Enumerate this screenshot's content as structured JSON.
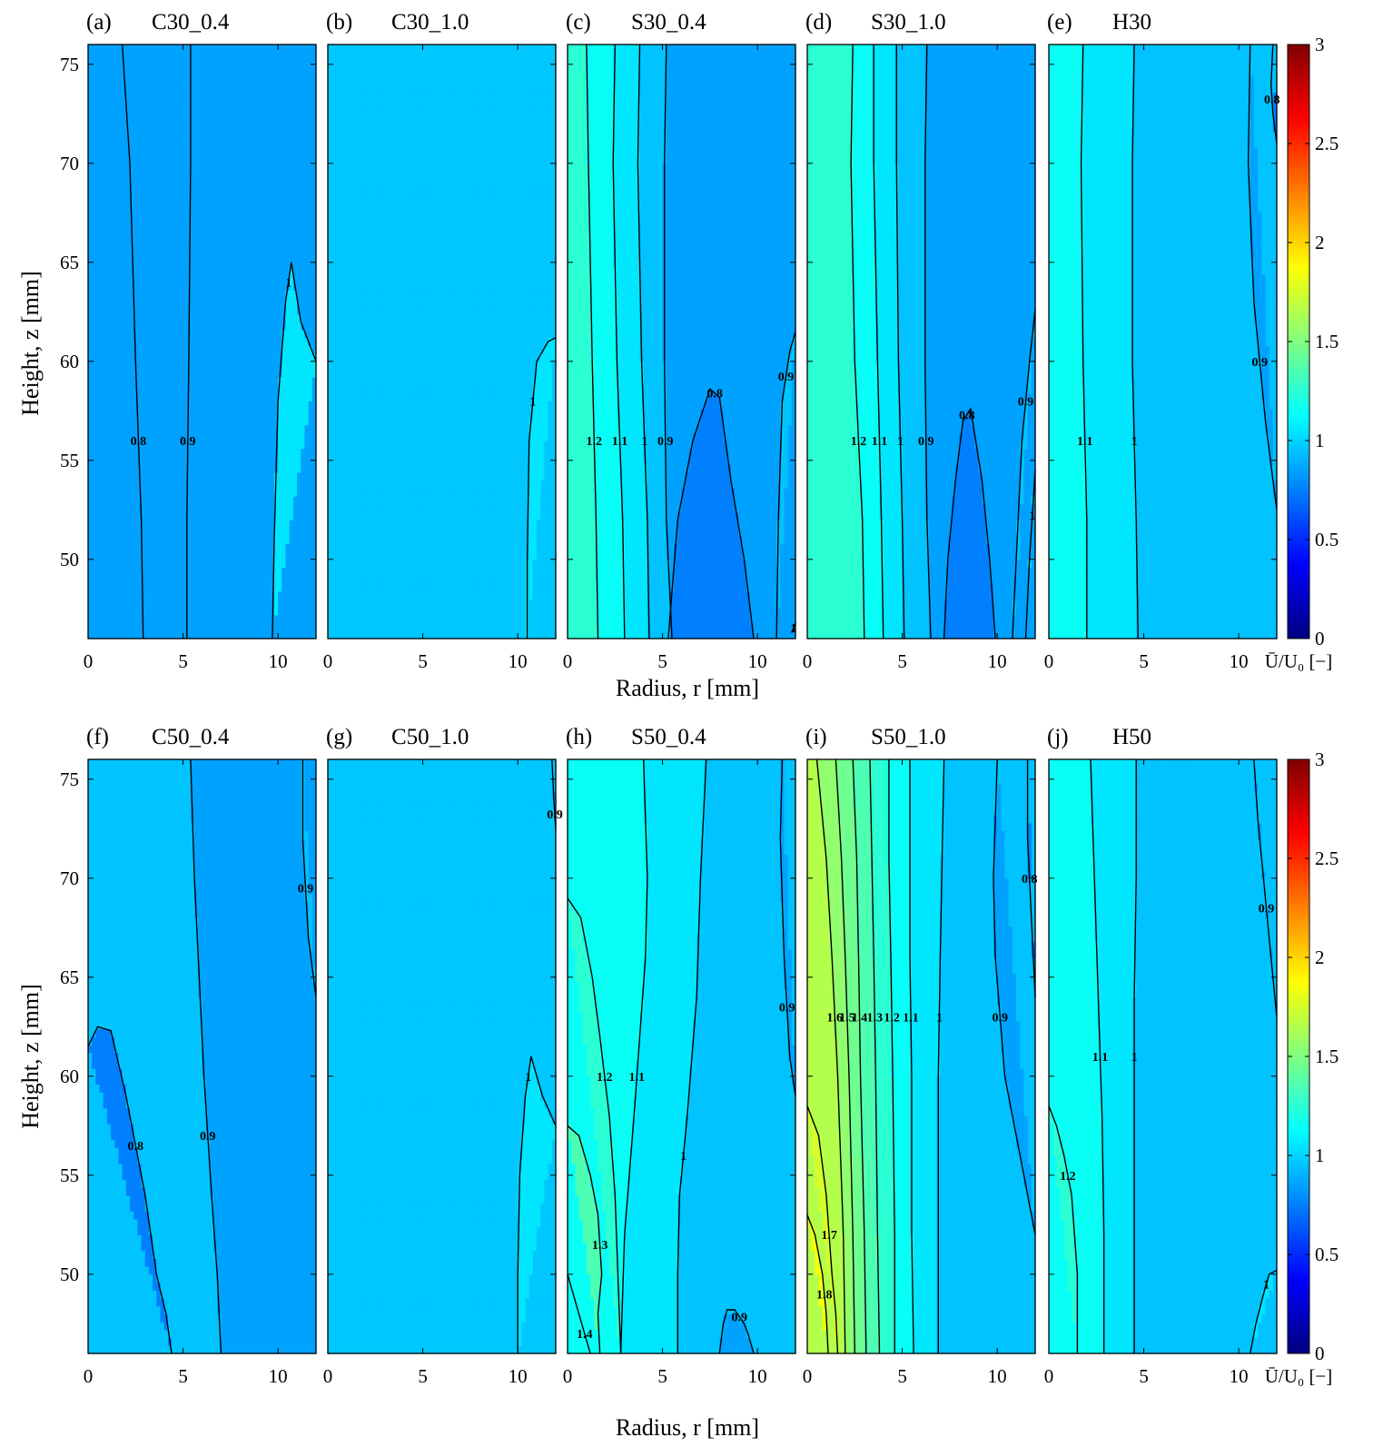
{
  "figure": {
    "xlabel": "Radius, r [mm]",
    "ylabel": "Height, z [mm]",
    "colorbar_label": "Ū/U₀ [−]"
  },
  "chart_data": {
    "type": "heatmap",
    "colormap": "jet",
    "clim": [
      0,
      3
    ],
    "colorbar_ticks": [
      "0",
      "0.5",
      "1",
      "1.5",
      "2",
      "2.5",
      "3"
    ],
    "x_range_mm": [
      0,
      12
    ],
    "y_range_mm": [
      46,
      76
    ],
    "x_ticks": [
      0,
      5,
      10
    ],
    "y_ticks": [
      50,
      55,
      60,
      65,
      70,
      75
    ],
    "panels": [
      {
        "tag": "(a)",
        "title": "C30_0.4",
        "contours": [
          {
            "level": 0.8,
            "x": [
              1.8,
              2.2,
              2.5,
              2.8,
              2.9
            ],
            "y": [
              76,
              70,
              60,
              52,
              46
            ]
          },
          {
            "level": 0.9,
            "x": [
              5.4,
              5.4,
              5.3,
              5.2,
              5.2
            ],
            "y": [
              76,
              70,
              60,
              52,
              46
            ]
          },
          {
            "level": 1.0,
            "x": [
              9.7,
              9.8,
              10.0,
              10.4,
              10.7,
              11.2,
              12
            ],
            "y": [
              46,
              51,
              58,
              63,
              65,
              62,
              60
            ]
          }
        ]
      },
      {
        "tag": "(b)",
        "title": "C30_1.0",
        "contours": [
          {
            "level": 1.0,
            "x": [
              10.5,
              10.5,
              10.6,
              11.0,
              11.6,
              12
            ],
            "y": [
              46,
              50,
              56,
              60,
              61,
              61.2
            ]
          }
        ]
      },
      {
        "tag": "(c)",
        "title": "S30_0.4",
        "contours": [
          {
            "level": 1.2,
            "x": [
              1.0,
              1.1,
              1.3,
              1.5,
              1.6
            ],
            "y": [
              76,
              70,
              60,
              52,
              46
            ]
          },
          {
            "level": 1.1,
            "x": [
              2.5,
              2.4,
              2.6,
              2.9,
              3.0
            ],
            "y": [
              76,
              70,
              60,
              52,
              46
            ]
          },
          {
            "level": 1.0,
            "x": [
              3.8,
              3.7,
              3.9,
              4.2,
              4.3
            ],
            "y": [
              76,
              70,
              60,
              52,
              46
            ]
          },
          {
            "level": 0.9,
            "x": [
              5.2,
              5.1,
              5.1,
              5.2,
              5.5
            ],
            "y": [
              76,
              70,
              60,
              52,
              46
            ]
          },
          {
            "level": 0.8,
            "x": [
              5.3,
              5.8,
              6.6,
              7.5,
              8.0,
              8.6,
              9.3,
              9.8
            ],
            "y": [
              46,
              52,
              56,
              58.6,
              58.2,
              54,
              50,
              46
            ]
          },
          {
            "level": 0.9,
            "x": [
              11.0,
              11.1,
              11.3,
              11.7,
              12
            ],
            "y": [
              46,
              52,
              58,
              60.5,
              61.5
            ]
          },
          {
            "level": 1.0,
            "x": [
              11.8,
              12
            ],
            "y": [
              46.3,
              46.8
            ]
          }
        ]
      },
      {
        "tag": "(d)",
        "title": "S30_1.0",
        "contours": [
          {
            "level": 1.2,
            "x": [
              2.4,
              2.3,
              2.5,
              2.9,
              3.0
            ],
            "y": [
              76,
              70,
              60,
              52,
              46
            ]
          },
          {
            "level": 1.1,
            "x": [
              3.5,
              3.5,
              3.7,
              3.9,
              4.0
            ],
            "y": [
              76,
              70,
              60,
              52,
              46
            ]
          },
          {
            "level": 1.0,
            "x": [
              4.7,
              4.7,
              4.8,
              5.0,
              5.1
            ],
            "y": [
              76,
              70,
              60,
              52,
              46
            ]
          },
          {
            "level": 0.9,
            "x": [
              6.3,
              6.2,
              6.2,
              6.3,
              6.5
            ],
            "y": [
              76,
              70,
              60,
              52,
              46
            ]
          },
          {
            "level": 0.8,
            "x": [
              7.2,
              7.4,
              7.8,
              8.2,
              8.6,
              9.2,
              9.6,
              9.9
            ],
            "y": [
              46,
              50,
              54,
              57,
              57.6,
              54,
              50,
              46
            ]
          },
          {
            "level": 0.9,
            "x": [
              10.8,
              11.0,
              11.3,
              11.7,
              12
            ],
            "y": [
              46,
              50,
              56,
              60,
              62.6
            ]
          },
          {
            "level": 1.0,
            "x": [
              11.5,
              11.7,
              12
            ],
            "y": [
              46,
              50,
              54.5
            ]
          }
        ]
      },
      {
        "tag": "(e)",
        "title": "H30",
        "contours": [
          {
            "level": 1.1,
            "x": [
              1.8,
              1.7,
              1.8,
              2.0,
              2.0
            ],
            "y": [
              76,
              70,
              60,
              52,
              46
            ]
          },
          {
            "level": 1.0,
            "x": [
              4.5,
              4.4,
              4.4,
              4.6,
              4.7
            ],
            "y": [
              76,
              70,
              60,
              52,
              46
            ]
          },
          {
            "level": 0.9,
            "x": [
              10.6,
              10.5,
              10.8,
              11.4,
              12
            ],
            "y": [
              76,
              70,
              63,
              57,
              52.5
            ]
          },
          {
            "level": 0.8,
            "x": [
              11.8,
              11.7,
              11.8,
              12
            ],
            "y": [
              76,
              74,
              72.5,
              71
            ]
          }
        ]
      },
      {
        "tag": "(f)",
        "title": "C50_0.4",
        "contours": [
          {
            "level": 0.8,
            "x": [
              0,
              0.5,
              1.2,
              2.0,
              3.0,
              3.6,
              4.1,
              4.4
            ],
            "y": [
              61.5,
              62.5,
              62.3,
              59,
              54,
              50,
              48,
              46
            ]
          },
          {
            "level": 0.9,
            "x": [
              5.4,
              5.6,
              6.1,
              6.5,
              6.8,
              7.0
            ],
            "y": [
              76,
              70,
              60,
              54,
              50,
              46
            ]
          },
          {
            "level": 0.9,
            "x": [
              11.3,
              11.3,
              11.6,
              12
            ],
            "y": [
              76,
              72,
              67,
              64
            ]
          }
        ]
      },
      {
        "tag": "(g)",
        "title": "C50_1.0",
        "contours": [
          {
            "level": 1.0,
            "x": [
              10.0,
              10.0,
              10.1,
              10.4,
              10.7,
              11.3,
              12
            ],
            "y": [
              46,
              50,
              55,
              59,
              61,
              59,
              57.5
            ]
          },
          {
            "level": 0.9,
            "x": [
              11.8,
              11.9,
              12
            ],
            "y": [
              76,
              74,
              72.5
            ]
          }
        ]
      },
      {
        "tag": "(h)",
        "title": "S50_0.4",
        "contours": [
          {
            "level": 1.1,
            "x": [
              4.0,
              4.2,
              4.1,
              3.8,
              3.5,
              3.0,
              2.8
            ],
            "y": [
              76,
              70,
              66,
              62,
              58,
              52,
              46
            ]
          },
          {
            "level": 1.0,
            "x": [
              7.3,
              7.0,
              6.8,
              6.3,
              5.9,
              5.8,
              5.8
            ],
            "y": [
              76,
              70,
              64,
              58,
              54,
              50,
              46
            ]
          },
          {
            "level": 1.2,
            "x": [
              0,
              0.7,
              1.3,
              1.7,
              2.2,
              2.5,
              2.8
            ],
            "y": [
              69,
              68,
              65,
              62,
              58,
              54,
              46
            ]
          },
          {
            "level": 1.3,
            "x": [
              0,
              0.6,
              1.2,
              1.6,
              1.8,
              1.6,
              1.7
            ],
            "y": [
              57.5,
              57,
              55,
              53,
              50,
              48,
              46
            ]
          },
          {
            "level": 1.4,
            "x": [
              0,
              0.6,
              1.2
            ],
            "y": [
              50,
              48,
              46
            ]
          },
          {
            "level": 0.9,
            "x": [
              8.0,
              8.2,
              8.4,
              8.8,
              9.3,
              9.5,
              9.8
            ],
            "y": [
              46,
              47.5,
              48.2,
              48.2,
              47.5,
              47,
              46
            ]
          },
          {
            "level": 0.9,
            "x": [
              11.3,
              11.2,
              11.4,
              11.7,
              12
            ],
            "y": [
              76,
              72,
              66,
              61,
              59
            ]
          }
        ]
      },
      {
        "tag": "(i)",
        "title": "S50_1.0",
        "contours": [
          {
            "level": 1.8,
            "x": [
              0,
              0.4,
              0.8,
              1.0,
              1.1
            ],
            "y": [
              53,
              52,
              50,
              48,
              46
            ]
          },
          {
            "level": 1.7,
            "x": [
              0,
              0.6,
              1.0,
              1.3,
              1.5,
              1.6
            ],
            "y": [
              58.5,
              57,
              54,
              50,
              48,
              46
            ]
          },
          {
            "level": 1.6,
            "x": [
              0.5,
              1.0,
              1.3,
              1.6,
              1.9,
              2.0
            ],
            "y": [
              76,
              71,
              66,
              60,
              52,
              46
            ]
          },
          {
            "level": 1.5,
            "x": [
              1.5,
              1.8,
              2.0,
              2.2,
              2.4,
              2.5
            ],
            "y": [
              76,
              71,
              66,
              60,
              52,
              46
            ]
          },
          {
            "level": 1.4,
            "x": [
              2.4,
              2.6,
              2.7,
              2.8,
              3.0,
              3.1
            ],
            "y": [
              76,
              71,
              66,
              60,
              52,
              46
            ]
          },
          {
            "level": 1.3,
            "x": [
              3.3,
              3.4,
              3.5,
              3.6,
              3.7,
              3.8
            ],
            "y": [
              76,
              71,
              66,
              60,
              52,
              46
            ]
          },
          {
            "level": 1.2,
            "x": [
              4.3,
              4.3,
              4.4,
              4.5,
              4.6,
              4.6
            ],
            "y": [
              76,
              71,
              66,
              60,
              52,
              46
            ]
          },
          {
            "level": 1.1,
            "x": [
              5.4,
              5.4,
              5.4,
              5.5,
              5.5,
              5.6
            ],
            "y": [
              76,
              71,
              66,
              60,
              52,
              46
            ]
          },
          {
            "level": 1.0,
            "x": [
              7.2,
              7.1,
              7.0,
              6.9,
              6.9,
              6.9
            ],
            "y": [
              76,
              71,
              66,
              60,
              52,
              46
            ]
          },
          {
            "level": 0.9,
            "x": [
              10.0,
              9.8,
              9.9,
              10.4,
              11.4,
              12
            ],
            "y": [
              76,
              70,
              66,
              60,
              55,
              52
            ]
          },
          {
            "level": 0.8,
            "x": [
              11.6,
              11.6,
              11.8,
              12
            ],
            "y": [
              76,
              72,
              68,
              64
            ]
          }
        ]
      },
      {
        "tag": "(j)",
        "title": "H50",
        "contours": [
          {
            "level": 1.2,
            "x": [
              0,
              0.4,
              0.8,
              1.2,
              1.5,
              1.5
            ],
            "y": [
              58.5,
              57.5,
              56,
              54,
              50,
              46
            ]
          },
          {
            "level": 1.1,
            "x": [
              2.2,
              2.4,
              2.6,
              2.8,
              2.9,
              2.9
            ],
            "y": [
              76,
              70,
              64,
              58,
              52,
              46
            ]
          },
          {
            "level": 1.0,
            "x": [
              4.6,
              4.6,
              4.5,
              4.5,
              4.5,
              4.5
            ],
            "y": [
              76,
              70,
              64,
              58,
              52,
              46
            ]
          },
          {
            "level": 0.9,
            "x": [
              10.8,
              11.0,
              11.3,
              11.6,
              12
            ],
            "y": [
              76,
              73,
              70,
              67,
              63
            ]
          },
          {
            "level": 1.0,
            "x": [
              10.6,
              10.9,
              11.3,
              11.6,
              12
            ],
            "y": [
              46,
              47.5,
              49,
              50,
              50.2
            ]
          }
        ]
      }
    ]
  }
}
